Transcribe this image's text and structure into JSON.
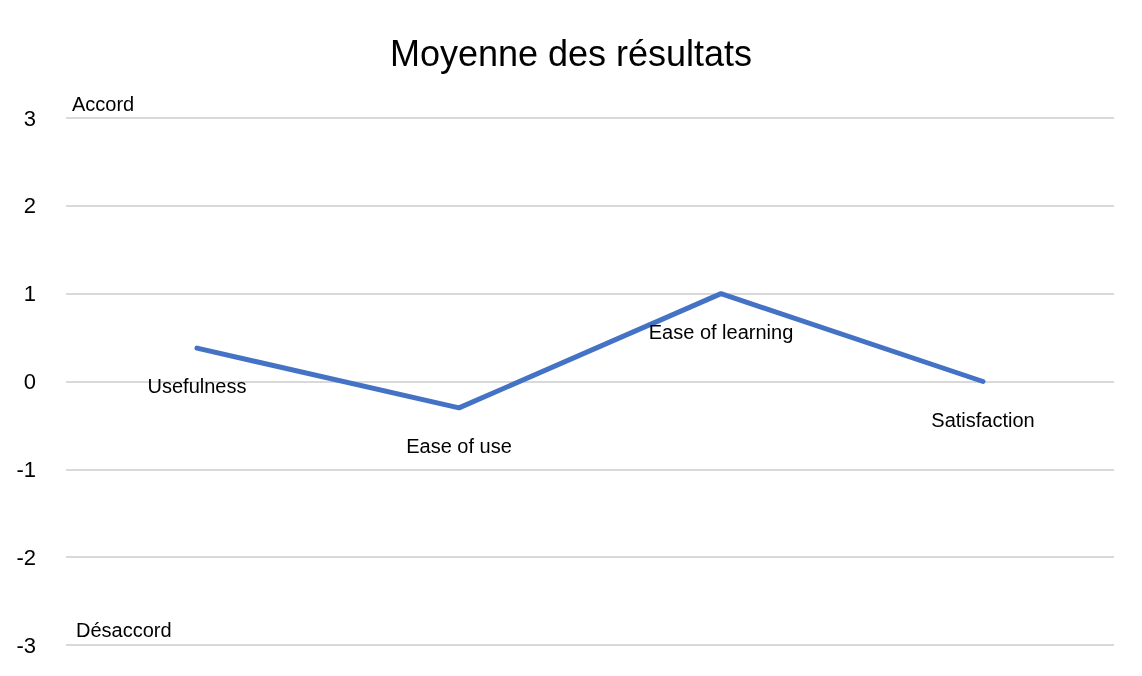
{
  "chart_data": {
    "type": "line",
    "title": "Moyenne des résultats",
    "categories": [
      "Usefulness",
      "Ease of use",
      "Ease of learning",
      "Satisfaction"
    ],
    "series": [
      {
        "color": "#4472c4",
        "values": [
          0.38,
          -0.3,
          1.0,
          0.0
        ]
      }
    ],
    "ylim": [
      -3,
      3
    ],
    "yticks": [
      -3,
      -2,
      -1,
      0,
      1,
      2,
      3
    ],
    "grid": "y",
    "marker": "none",
    "line_style": "solid",
    "annotations": [
      "Accord",
      "Désaccord"
    ]
  }
}
